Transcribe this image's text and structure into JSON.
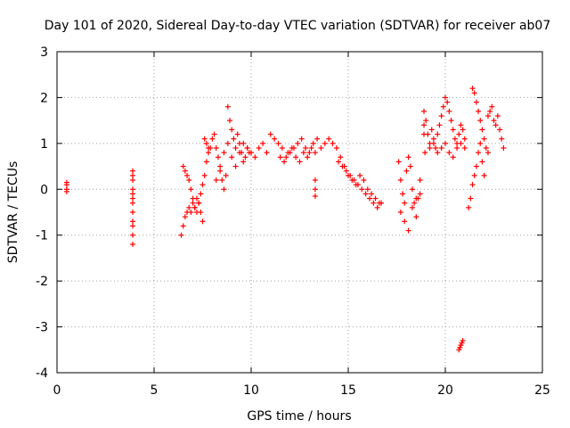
{
  "chart_data": {
    "type": "scatter",
    "title": "Day 101 of 2020, Sidereal Day-to-day VTEC variation (SDTVAR) for receiver ab07",
    "xlabel": "GPS time / hours",
    "ylabel": "SDTVAR / TECUs",
    "xlim": [
      0,
      25
    ],
    "ylim": [
      -4,
      3
    ],
    "xticks": [
      0,
      5,
      10,
      15,
      20,
      25
    ],
    "yticks": [
      -4,
      -3,
      -2,
      -1,
      0,
      1,
      2,
      3
    ],
    "xtick_labels": [
      "0",
      "5",
      "10",
      "15",
      "20",
      "25"
    ],
    "ytick_labels": [
      "-4",
      "-3",
      "-2",
      "-1",
      "0",
      "1",
      "2",
      "3"
    ],
    "grid": true,
    "marker": "+",
    "color": "#ff0000",
    "series": [
      {
        "name": "SDTVAR",
        "x": [
          0.5,
          0.5,
          0.5,
          0.5,
          3.9,
          3.9,
          3.9,
          3.9,
          3.9,
          3.9,
          3.9,
          3.9,
          3.9,
          3.9,
          3.9,
          3.9,
          6.4,
          6.5,
          6.6,
          6.7,
          6.8,
          6.9,
          7.0,
          7.1,
          7.2,
          7.3,
          7.4,
          7.5,
          6.5,
          6.6,
          6.7,
          6.8,
          6.9,
          7.0,
          7.1,
          7.2,
          7.3,
          7.4,
          7.5,
          7.6,
          7.7,
          7.8,
          7.6,
          7.7,
          7.8,
          7.9,
          8.0,
          8.1,
          8.2,
          8.3,
          8.4,
          8.5,
          8.6,
          8.7,
          8.8,
          8.9,
          9.0,
          9.1,
          9.2,
          9.3,
          9.4,
          9.5,
          9.6,
          9.7,
          9.8,
          9.9,
          8.2,
          8.4,
          8.6,
          8.8,
          9.0,
          9.2,
          9.4,
          9.6,
          9.8,
          10.0,
          10.2,
          10.4,
          10.6,
          10.8,
          11.0,
          11.2,
          11.4,
          11.6,
          11.8,
          12.0,
          12.2,
          12.4,
          12.6,
          12.8,
          13.0,
          13.2,
          13.4,
          13.6,
          13.8,
          14.0,
          11.5,
          11.7,
          11.9,
          12.1,
          12.3,
          12.5,
          12.7,
          12.9,
          13.1,
          13.3,
          13.3,
          13.3,
          13.3,
          14.2,
          14.4,
          14.6,
          14.8,
          15.0,
          15.2,
          15.4,
          15.6,
          15.8,
          16.0,
          14.5,
          14.7,
          14.9,
          15.1,
          15.3,
          15.5,
          15.7,
          15.9,
          16.1,
          16.3,
          16.5,
          16.7,
          16.2,
          16.4,
          16.6,
          17.6,
          17.7,
          17.8,
          17.9,
          18.0,
          18.1,
          18.2,
          18.3,
          18.4,
          18.5,
          18.6,
          18.7,
          17.7,
          17.9,
          18.1,
          18.3,
          18.5,
          18.7,
          18.9,
          19.0,
          19.1,
          19.2,
          19.3,
          19.4,
          19.5,
          19.6,
          19.7,
          19.8,
          19.9,
          20.0,
          20.1,
          20.2,
          20.3,
          20.4,
          20.5,
          20.6,
          20.7,
          20.8,
          20.9,
          21.0,
          19.2,
          19.4,
          19.6,
          19.8,
          20.0,
          20.2,
          20.4,
          20.6,
          20.8,
          21.0,
          20.7,
          20.8,
          20.9,
          20.75,
          20.85,
          21.2,
          21.3,
          21.4,
          21.5,
          21.6,
          21.7,
          21.8,
          21.9,
          22.0,
          21.4,
          21.5,
          21.6,
          21.7,
          21.8,
          21.9,
          22.0,
          22.1,
          22.2,
          22.2,
          22.3,
          22.4,
          22.5,
          22.6,
          22.7,
          22.8,
          22.9,
          23.0,
          18.9,
          18.9,
          18.95
        ],
        "y": [
          0.0,
          0.1,
          0.15,
          -0.05,
          0.4,
          0.3,
          0.2,
          0.0,
          -0.1,
          -0.2,
          -0.3,
          -0.5,
          -0.7,
          -0.8,
          -1.0,
          -1.2,
          -1.0,
          -0.8,
          -0.6,
          -0.5,
          -0.4,
          -0.5,
          -0.3,
          -0.4,
          -0.2,
          -0.3,
          -0.5,
          -0.7,
          0.5,
          0.4,
          0.3,
          0.2,
          0.0,
          -0.2,
          -0.4,
          -0.5,
          -0.3,
          -0.1,
          0.1,
          0.3,
          0.6,
          0.9,
          1.1,
          1.0,
          0.8,
          0.9,
          1.1,
          1.2,
          0.9,
          0.7,
          0.4,
          0.2,
          0.0,
          0.3,
          1.8,
          1.5,
          1.3,
          1.1,
          0.9,
          1.2,
          1.0,
          0.8,
          0.6,
          0.7,
          0.9,
          0.8,
          0.2,
          0.5,
          0.8,
          1.0,
          0.7,
          0.5,
          0.8,
          1.0,
          0.9,
          0.8,
          0.7,
          0.9,
          1.0,
          0.8,
          1.2,
          1.1,
          1.0,
          0.9,
          0.7,
          0.8,
          0.9,
          1.0,
          1.1,
          0.9,
          0.8,
          1.0,
          1.1,
          0.9,
          1.0,
          1.1,
          0.7,
          0.6,
          0.8,
          0.9,
          0.7,
          0.6,
          0.8,
          0.7,
          0.9,
          0.8,
          0.2,
          0.0,
          -0.15,
          1.0,
          0.9,
          0.7,
          0.5,
          0.3,
          0.2,
          0.1,
          0.3,
          0.2,
          0.0,
          0.6,
          0.5,
          0.4,
          0.3,
          0.2,
          0.1,
          0.0,
          -0.1,
          -0.2,
          -0.3,
          -0.4,
          -0.3,
          -0.1,
          -0.2,
          -0.3,
          0.6,
          0.2,
          -0.1,
          -0.3,
          0.4,
          0.7,
          0.5,
          0.0,
          -0.3,
          -0.6,
          -0.2,
          0.2,
          -0.5,
          -0.7,
          -0.9,
          -0.4,
          -0.2,
          -0.1,
          1.7,
          1.5,
          1.2,
          1.0,
          1.3,
          1.1,
          0.9,
          1.2,
          1.4,
          1.6,
          1.8,
          2.0,
          1.9,
          1.7,
          1.5,
          1.3,
          1.1,
          1.0,
          1.2,
          1.4,
          1.3,
          1.1,
          0.9,
          1.0,
          0.8,
          0.9,
          1.0,
          0.8,
          0.7,
          0.9,
          1.0,
          0.9,
          -3.5,
          -3.4,
          -3.3,
          -3.45,
          -3.35,
          -0.4,
          -0.2,
          0.1,
          0.3,
          0.5,
          0.8,
          1.0,
          0.6,
          0.3,
          2.2,
          2.1,
          1.9,
          1.7,
          1.5,
          1.3,
          1.1,
          0.9,
          0.8,
          1.6,
          1.7,
          1.8,
          1.5,
          1.4,
          1.6,
          1.3,
          1.1,
          0.9,
          1.4,
          1.2,
          0.8
        ]
      }
    ]
  }
}
